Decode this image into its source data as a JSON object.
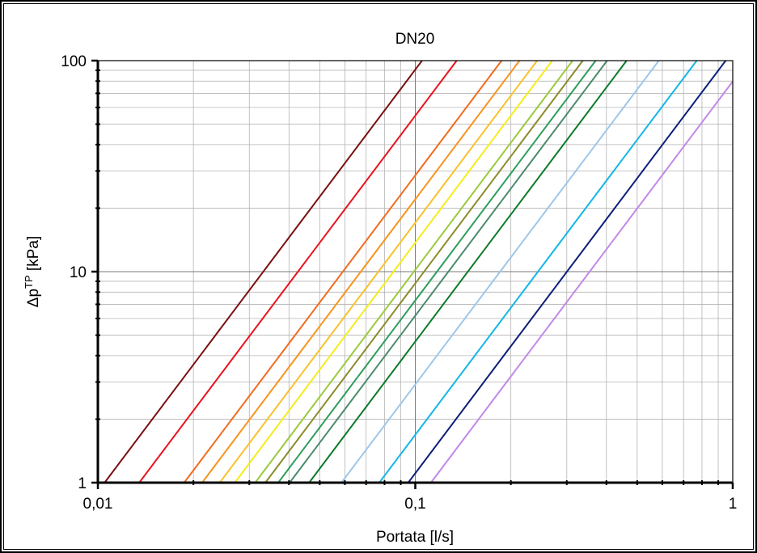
{
  "chart_data": {
    "type": "line",
    "title": "DN20",
    "xlabel": "Portata [l/s]",
    "ylabel": {
      "base": "Δp",
      "sup": "TP",
      "rest": " [kPa]"
    },
    "x_scale": "log",
    "y_scale": "log",
    "xlim": [
      0.01,
      1
    ],
    "ylim": [
      1,
      100
    ],
    "x_ticks": [
      {
        "value": 0.01,
        "label": "0,01"
      },
      {
        "value": 0.1,
        "label": "0,1"
      },
      {
        "value": 1,
        "label": "1"
      }
    ],
    "y_ticks": [
      {
        "value": 1,
        "label": "1"
      },
      {
        "value": 10,
        "label": "10"
      },
      {
        "value": 100,
        "label": "100"
      }
    ],
    "grid": true,
    "legend": "none",
    "series": [
      {
        "color": "#7a1010",
        "x": [
          0.0105,
          0.105
        ],
        "y": [
          1,
          100
        ]
      },
      {
        "color": "#e8141e",
        "x": [
          0.0135,
          0.135
        ],
        "y": [
          1,
          100
        ]
      },
      {
        "color": "#f26b1d",
        "x": [
          0.0187,
          0.187
        ],
        "y": [
          1,
          100
        ]
      },
      {
        "color": "#f7941d",
        "x": [
          0.0213,
          0.213
        ],
        "y": [
          1,
          100
        ]
      },
      {
        "color": "#fbc02d",
        "x": [
          0.0242,
          0.242
        ],
        "y": [
          1,
          100
        ]
      },
      {
        "color": "#f5ec1b",
        "x": [
          0.027,
          0.27
        ],
        "y": [
          1,
          100
        ]
      },
      {
        "color": "#9bc93c",
        "x": [
          0.0313,
          0.313
        ],
        "y": [
          1,
          100
        ]
      },
      {
        "color": "#8a8c2a",
        "x": [
          0.0337,
          0.337
        ],
        "y": [
          1,
          100
        ]
      },
      {
        "color": "#2e9e5b",
        "x": [
          0.037,
          0.37
        ],
        "y": [
          1,
          100
        ]
      },
      {
        "color": "#4d8a6c",
        "x": [
          0.0402,
          0.402
        ],
        "y": [
          1,
          100
        ]
      },
      {
        "color": "#0c7a2a",
        "x": [
          0.0463,
          0.463
        ],
        "y": [
          1,
          100
        ]
      },
      {
        "color": "#9cc7ec",
        "x": [
          0.0585,
          0.585
        ],
        "y": [
          1,
          100
        ]
      },
      {
        "color": "#14b6e6",
        "x": [
          0.077,
          0.77
        ],
        "y": [
          1,
          100
        ]
      },
      {
        "color": "#0d1f7a",
        "x": [
          0.095,
          0.95
        ],
        "y": [
          1,
          100
        ]
      },
      {
        "color": "#c089e8",
        "x": [
          0.112,
          1.0
        ],
        "y": [
          1,
          79.7
        ]
      }
    ]
  }
}
